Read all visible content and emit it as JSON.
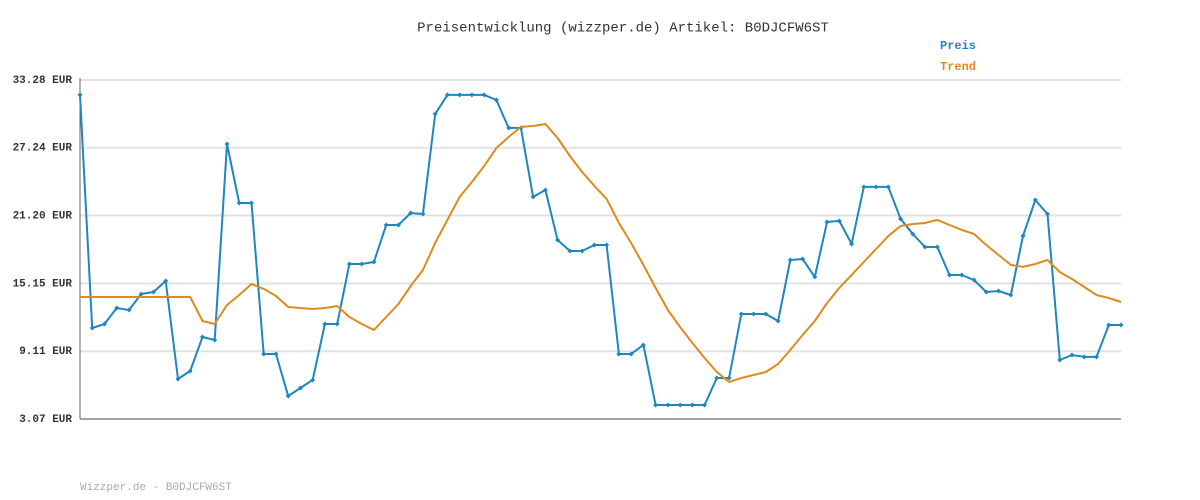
{
  "chart_data": {
    "type": "line",
    "title": "Preisentwicklung (wizzper.de) Artikel: B0DJCFW6ST",
    "footer": "Wizzper.de - B0DJCFW6ST",
    "categories": [
      null,
      null,
      null,
      null,
      null,
      null,
      null,
      null,
      null,
      null,
      null,
      null,
      null,
      null,
      null,
      null,
      null,
      null,
      null,
      null,
      null,
      null,
      null,
      null,
      null,
      null,
      null,
      null,
      null,
      null,
      null,
      null,
      null,
      null,
      null,
      null,
      null,
      null,
      null,
      null,
      null,
      null,
      null,
      null,
      null,
      null,
      null,
      null,
      null,
      null,
      null,
      null,
      null,
      null,
      null,
      null,
      null,
      null,
      null,
      null,
      null,
      null,
      null,
      null,
      null,
      null,
      null,
      null,
      null,
      null,
      null,
      null,
      null,
      null,
      null,
      null,
      null,
      null,
      null,
      null,
      null,
      null,
      null,
      null,
      null,
      null
    ],
    "series": [
      {
        "name": "Preis",
        "color": "#1f86c0",
        "markers": true,
        "values": [
          31.95,
          11.18,
          11.54,
          12.96,
          12.78,
          14.21,
          14.39,
          15.37,
          6.64,
          7.35,
          10.38,
          10.11,
          27.58,
          22.32,
          22.32,
          8.86,
          8.86,
          5.12,
          5.83,
          6.55,
          11.54,
          11.54,
          16.88,
          16.88,
          17.06,
          20.36,
          20.36,
          21.43,
          21.34,
          30.25,
          31.95,
          31.95,
          31.95,
          31.95,
          31.5,
          29.01,
          29.01,
          22.86,
          23.48,
          19.02,
          18.04,
          18.04,
          18.58,
          18.58,
          8.86,
          8.86,
          9.67,
          4.32,
          4.32,
          4.32,
          4.32,
          4.32,
          6.72,
          6.72,
          12.43,
          12.43,
          12.43,
          11.8,
          17.24,
          17.33,
          15.73,
          20.63,
          20.72,
          18.67,
          23.75,
          23.75,
          23.75,
          20.9,
          19.56,
          18.4,
          18.4,
          15.9,
          15.9,
          15.46,
          14.39,
          14.48,
          14.12,
          19.38,
          22.59,
          21.34,
          8.33,
          8.77,
          8.6,
          8.6,
          11.45,
          11.45
        ]
      },
      {
        "name": "Trend",
        "color": "#e08a1e",
        "markers": false,
        "values": [
          13.94,
          13.94,
          13.94,
          13.94,
          13.94,
          13.94,
          13.94,
          13.94,
          13.94,
          13.94,
          11.8,
          11.54,
          13.23,
          14.12,
          15.1,
          14.66,
          14.03,
          13.05,
          12.96,
          12.87,
          12.96,
          13.14,
          12.16,
          11.54,
          11.0,
          12.16,
          13.32,
          14.92,
          16.35,
          18.76,
          20.81,
          22.86,
          24.19,
          25.62,
          27.22,
          28.2,
          29.1,
          29.18,
          29.36,
          28.11,
          26.51,
          25.08,
          23.84,
          22.68,
          20.54,
          18.76,
          16.8,
          14.75,
          12.78,
          11.27,
          9.84,
          8.51,
          7.26,
          6.37,
          6.72,
          6.99,
          7.26,
          7.97,
          9.22,
          10.56,
          11.8,
          13.41,
          14.75,
          15.9,
          17.06,
          18.22,
          19.38,
          20.27,
          20.45,
          20.54,
          20.81,
          20.36,
          19.92,
          19.56,
          18.58,
          17.69,
          16.8,
          16.62,
          16.88,
          17.24,
          16.17,
          15.55,
          14.83,
          14.12,
          13.85,
          13.5
        ]
      }
    ],
    "ylim": [
      3.07,
      33.28
    ],
    "yticks": [
      {
        "value": 3.07,
        "label": "3.07 EUR"
      },
      {
        "value": 9.11,
        "label": "9.11 EUR"
      },
      {
        "value": 15.15,
        "label": "15.15 EUR"
      },
      {
        "value": 21.2,
        "label": "21.20 EUR"
      },
      {
        "value": 27.24,
        "label": "27.24 EUR"
      },
      {
        "value": 33.28,
        "label": "33.28 EUR"
      }
    ],
    "grid": true,
    "legend": "top-right"
  }
}
